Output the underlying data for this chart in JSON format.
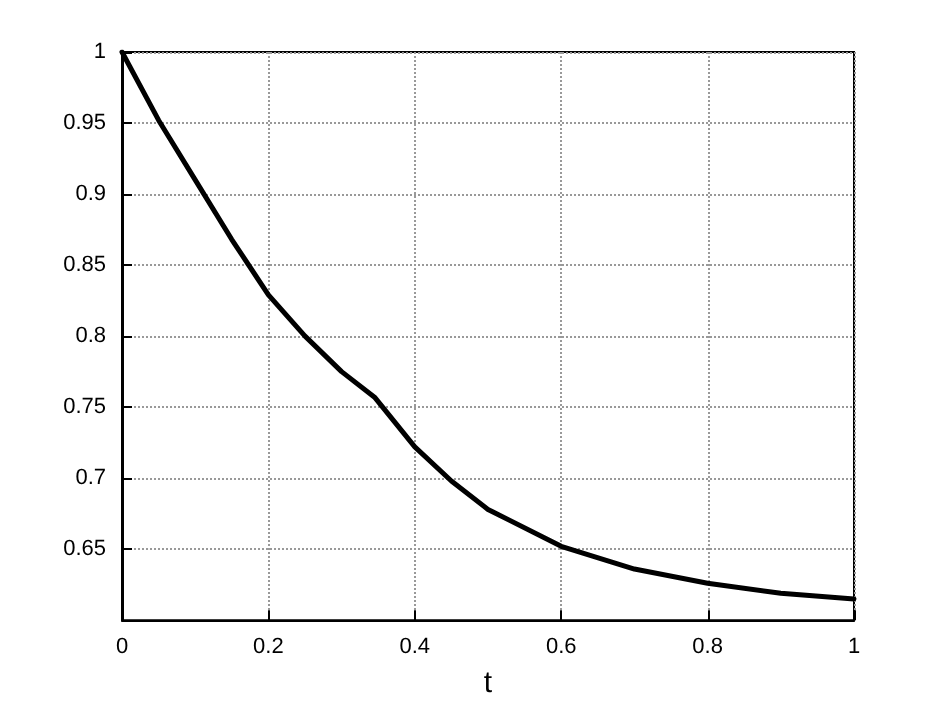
{
  "chart_data": {
    "type": "line",
    "xlabel": "t",
    "x": [
      0,
      0.05,
      0.1,
      0.15,
      0.2,
      0.25,
      0.3,
      0.345,
      0.4,
      0.45,
      0.5,
      0.6,
      0.7,
      0.8,
      0.9,
      1
    ],
    "series": [
      {
        "color": "#000000",
        "values": [
          1,
          0.952,
          0.91,
          0.868,
          0.829,
          0.8,
          0.775,
          0.757,
          0.722,
          0.698,
          0.678,
          0.652,
          0.636,
          0.626,
          0.619,
          0.615
        ]
      }
    ],
    "xlim": [
      0,
      1
    ],
    "xticks": [
      0,
      0.2,
      0.4,
      0.6,
      0.8,
      1
    ],
    "ylim": [
      0.6,
      1
    ],
    "yticks": [
      0.65,
      0.7,
      0.75,
      0.8,
      0.85,
      0.9,
      0.95,
      1
    ],
    "grid": true,
    "marker": "none",
    "line_style": "solid"
  }
}
